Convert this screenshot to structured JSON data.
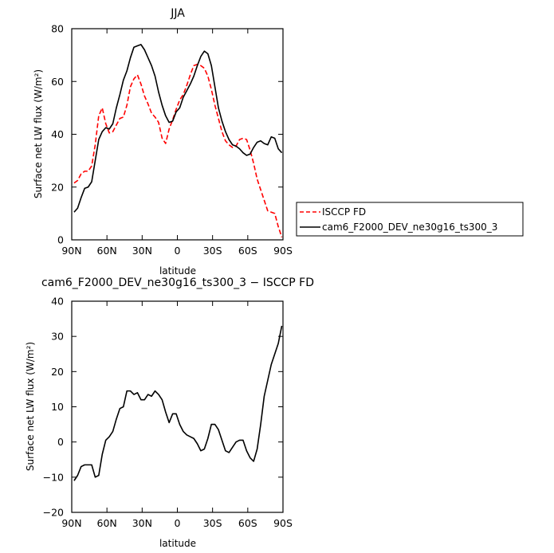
{
  "chart_data": [
    {
      "type": "line",
      "title": "JJA",
      "xlabel": "latitude",
      "ylabel": "Surface net LW flux (W/m²)",
      "xlim": [
        90,
        -90
      ],
      "ylim": [
        0,
        80
      ],
      "xticks": [
        90,
        60,
        30,
        0,
        -30,
        -60,
        -90
      ],
      "xticklabels": [
        "90N",
        "60N",
        "30N",
        "0",
        "30S",
        "60S",
        "90S"
      ],
      "yticks": [
        0,
        20,
        40,
        60,
        80
      ],
      "yticklabels": [
        "0",
        "20",
        "40",
        "60",
        "80"
      ],
      "legend_position": "right",
      "series": [
        {
          "name": "ISCCP FD",
          "color": "#ff0000",
          "style": "dashed",
          "x": [
            88,
            85,
            82,
            79,
            76,
            73,
            70,
            67,
            64,
            61,
            58,
            55,
            52,
            49,
            46,
            43,
            40,
            37,
            34,
            31,
            28,
            25,
            22,
            19,
            16,
            13,
            10,
            7,
            4,
            1,
            -2,
            -5,
            -8,
            -11,
            -14,
            -17,
            -20,
            -23,
            -26,
            -29,
            -32,
            -35,
            -38,
            -41,
            -44,
            -47,
            -50,
            -53,
            -56,
            -59,
            -62,
            -65,
            -68,
            -71,
            -74,
            -77,
            -80,
            -83,
            -86,
            -89
          ],
          "y": [
            21.5,
            22.5,
            25,
            26,
            26,
            28,
            36,
            47,
            50,
            44,
            40.5,
            41,
            43.5,
            46,
            46.5,
            51,
            58,
            61,
            62.5,
            59,
            54.5,
            51.5,
            48,
            46.5,
            44.5,
            38.5,
            36.5,
            42,
            45.5,
            49.5,
            53,
            55,
            58.5,
            62.5,
            66,
            66.5,
            66,
            65,
            62,
            57,
            51,
            46,
            41,
            37.5,
            36,
            35,
            35.5,
            38,
            38.5,
            38,
            34,
            29,
            23,
            19,
            15,
            11,
            10.5,
            10,
            5,
            1
          ]
        },
        {
          "name": "cam6_F2000_DEV_ne30g16_ts300_3",
          "color": "#000000",
          "style": "solid",
          "x": [
            88,
            85,
            82,
            79,
            76,
            73,
            70,
            67,
            64,
            61,
            58,
            55,
            52,
            49,
            46,
            43,
            40,
            37,
            34,
            31,
            28,
            25,
            22,
            19,
            16,
            13,
            10,
            7,
            4,
            1,
            -2,
            -5,
            -8,
            -11,
            -14,
            -17,
            -20,
            -23,
            -26,
            -29,
            -32,
            -35,
            -38,
            -41,
            -44,
            -47,
            -50,
            -53,
            -56,
            -59,
            -62,
            -65,
            -68,
            -71,
            -74,
            -77,
            -80,
            -83,
            -86,
            -89
          ],
          "y": [
            10.5,
            12,
            16,
            19.5,
            20,
            22,
            30,
            38,
            41,
            42.5,
            42,
            44,
            50,
            55,
            60.5,
            64,
            69,
            73,
            73.5,
            74,
            72,
            69,
            66,
            62,
            56,
            51,
            47,
            44.5,
            45,
            48.5,
            50,
            54,
            56.5,
            59,
            62,
            66,
            69.5,
            71.5,
            70.5,
            66,
            58,
            50,
            45,
            41,
            38,
            36,
            35.5,
            34.5,
            33,
            32,
            32.5,
            35,
            37,
            37.5,
            36.5,
            36,
            39,
            38.5,
            34.5,
            33
          ]
        }
      ]
    },
    {
      "type": "line",
      "title": "cam6_F2000_DEV_ne30g16_ts300_3 − ISCCP FD",
      "xlabel": "latitude",
      "ylabel": "Surface net LW flux (W/m²)",
      "xlim": [
        90,
        -90
      ],
      "ylim": [
        -20,
        40
      ],
      "xticks": [
        90,
        60,
        30,
        0,
        -30,
        -60,
        -90
      ],
      "xticklabels": [
        "90N",
        "60N",
        "30N",
        "0",
        "30S",
        "60S",
        "90S"
      ],
      "yticks": [
        -20,
        -10,
        0,
        10,
        20,
        30,
        40
      ],
      "yticklabels": [
        "−20",
        "−10",
        "0",
        "10",
        "20",
        "30",
        "40"
      ],
      "series": [
        {
          "color": "#000000",
          "style": "solid",
          "x": [
            88,
            85,
            82,
            79,
            76,
            73,
            70,
            67,
            64,
            61,
            58,
            55,
            52,
            49,
            46,
            43,
            40,
            37,
            34,
            31,
            28,
            25,
            22,
            19,
            16,
            13,
            10,
            7,
            4,
            1,
            -2,
            -5,
            -8,
            -11,
            -14,
            -17,
            -20,
            -23,
            -26,
            -29,
            -32,
            -35,
            -38,
            -41,
            -44,
            -47,
            -50,
            -53,
            -56,
            -59,
            -62,
            -65,
            -68,
            -71,
            -74,
            -77,
            -80,
            -83,
            -86,
            -89
          ],
          "y": [
            -11,
            -9.5,
            -7,
            -6.5,
            -6.5,
            -6.5,
            -10,
            -9.5,
            -3.5,
            0.5,
            1.5,
            3,
            6.5,
            9.5,
            10,
            14.5,
            14.5,
            13.5,
            14,
            12,
            12,
            13.5,
            13,
            14.5,
            13.5,
            12,
            8.5,
            5.5,
            8,
            8,
            5,
            3,
            2,
            1.5,
            1,
            -0.5,
            -2.5,
            -2,
            1,
            5,
            5,
            3.5,
            0.5,
            -2.5,
            -3,
            -1.5,
            0,
            0.5,
            0.5,
            -2.5,
            -4.5,
            -5.5,
            -2,
            5,
            13,
            17.5,
            22,
            25,
            28,
            33
          ]
        }
      ]
    }
  ]
}
